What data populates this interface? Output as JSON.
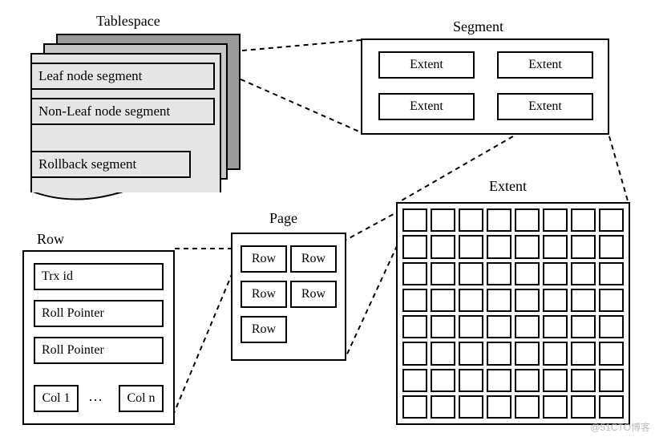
{
  "labels": {
    "tablespace": "Tablespace",
    "segment": "Segment",
    "extent_title": "Extent",
    "page": "Page",
    "row": "Row"
  },
  "tablespace": {
    "segments": [
      "Leaf node segment",
      "Non-Leaf node segment",
      "Rollback segment"
    ],
    "panel_colors": [
      "#9a9a9a",
      "#c8c8c8",
      "#e6e6e6"
    ]
  },
  "segment": {
    "extents": [
      "Extent",
      "Extent",
      "Extent",
      "Extent"
    ]
  },
  "extent_grid": {
    "rows": 8,
    "cols": 8
  },
  "page": {
    "rows": [
      "Row",
      "Row",
      "Row",
      "Row",
      "Row"
    ]
  },
  "row_panel": {
    "items": [
      "Trx id",
      "Roll Pointer",
      "Roll Pointer"
    ],
    "cols": {
      "first": "Col 1",
      "ellipsis": "…",
      "last": "Col n"
    }
  },
  "style": {
    "border_color": "#000000",
    "background": "#ffffff",
    "font_family": "Times New Roman",
    "title_fontsize": 18,
    "cell_fontsize": 16
  },
  "watermark": "@51CTO博客"
}
